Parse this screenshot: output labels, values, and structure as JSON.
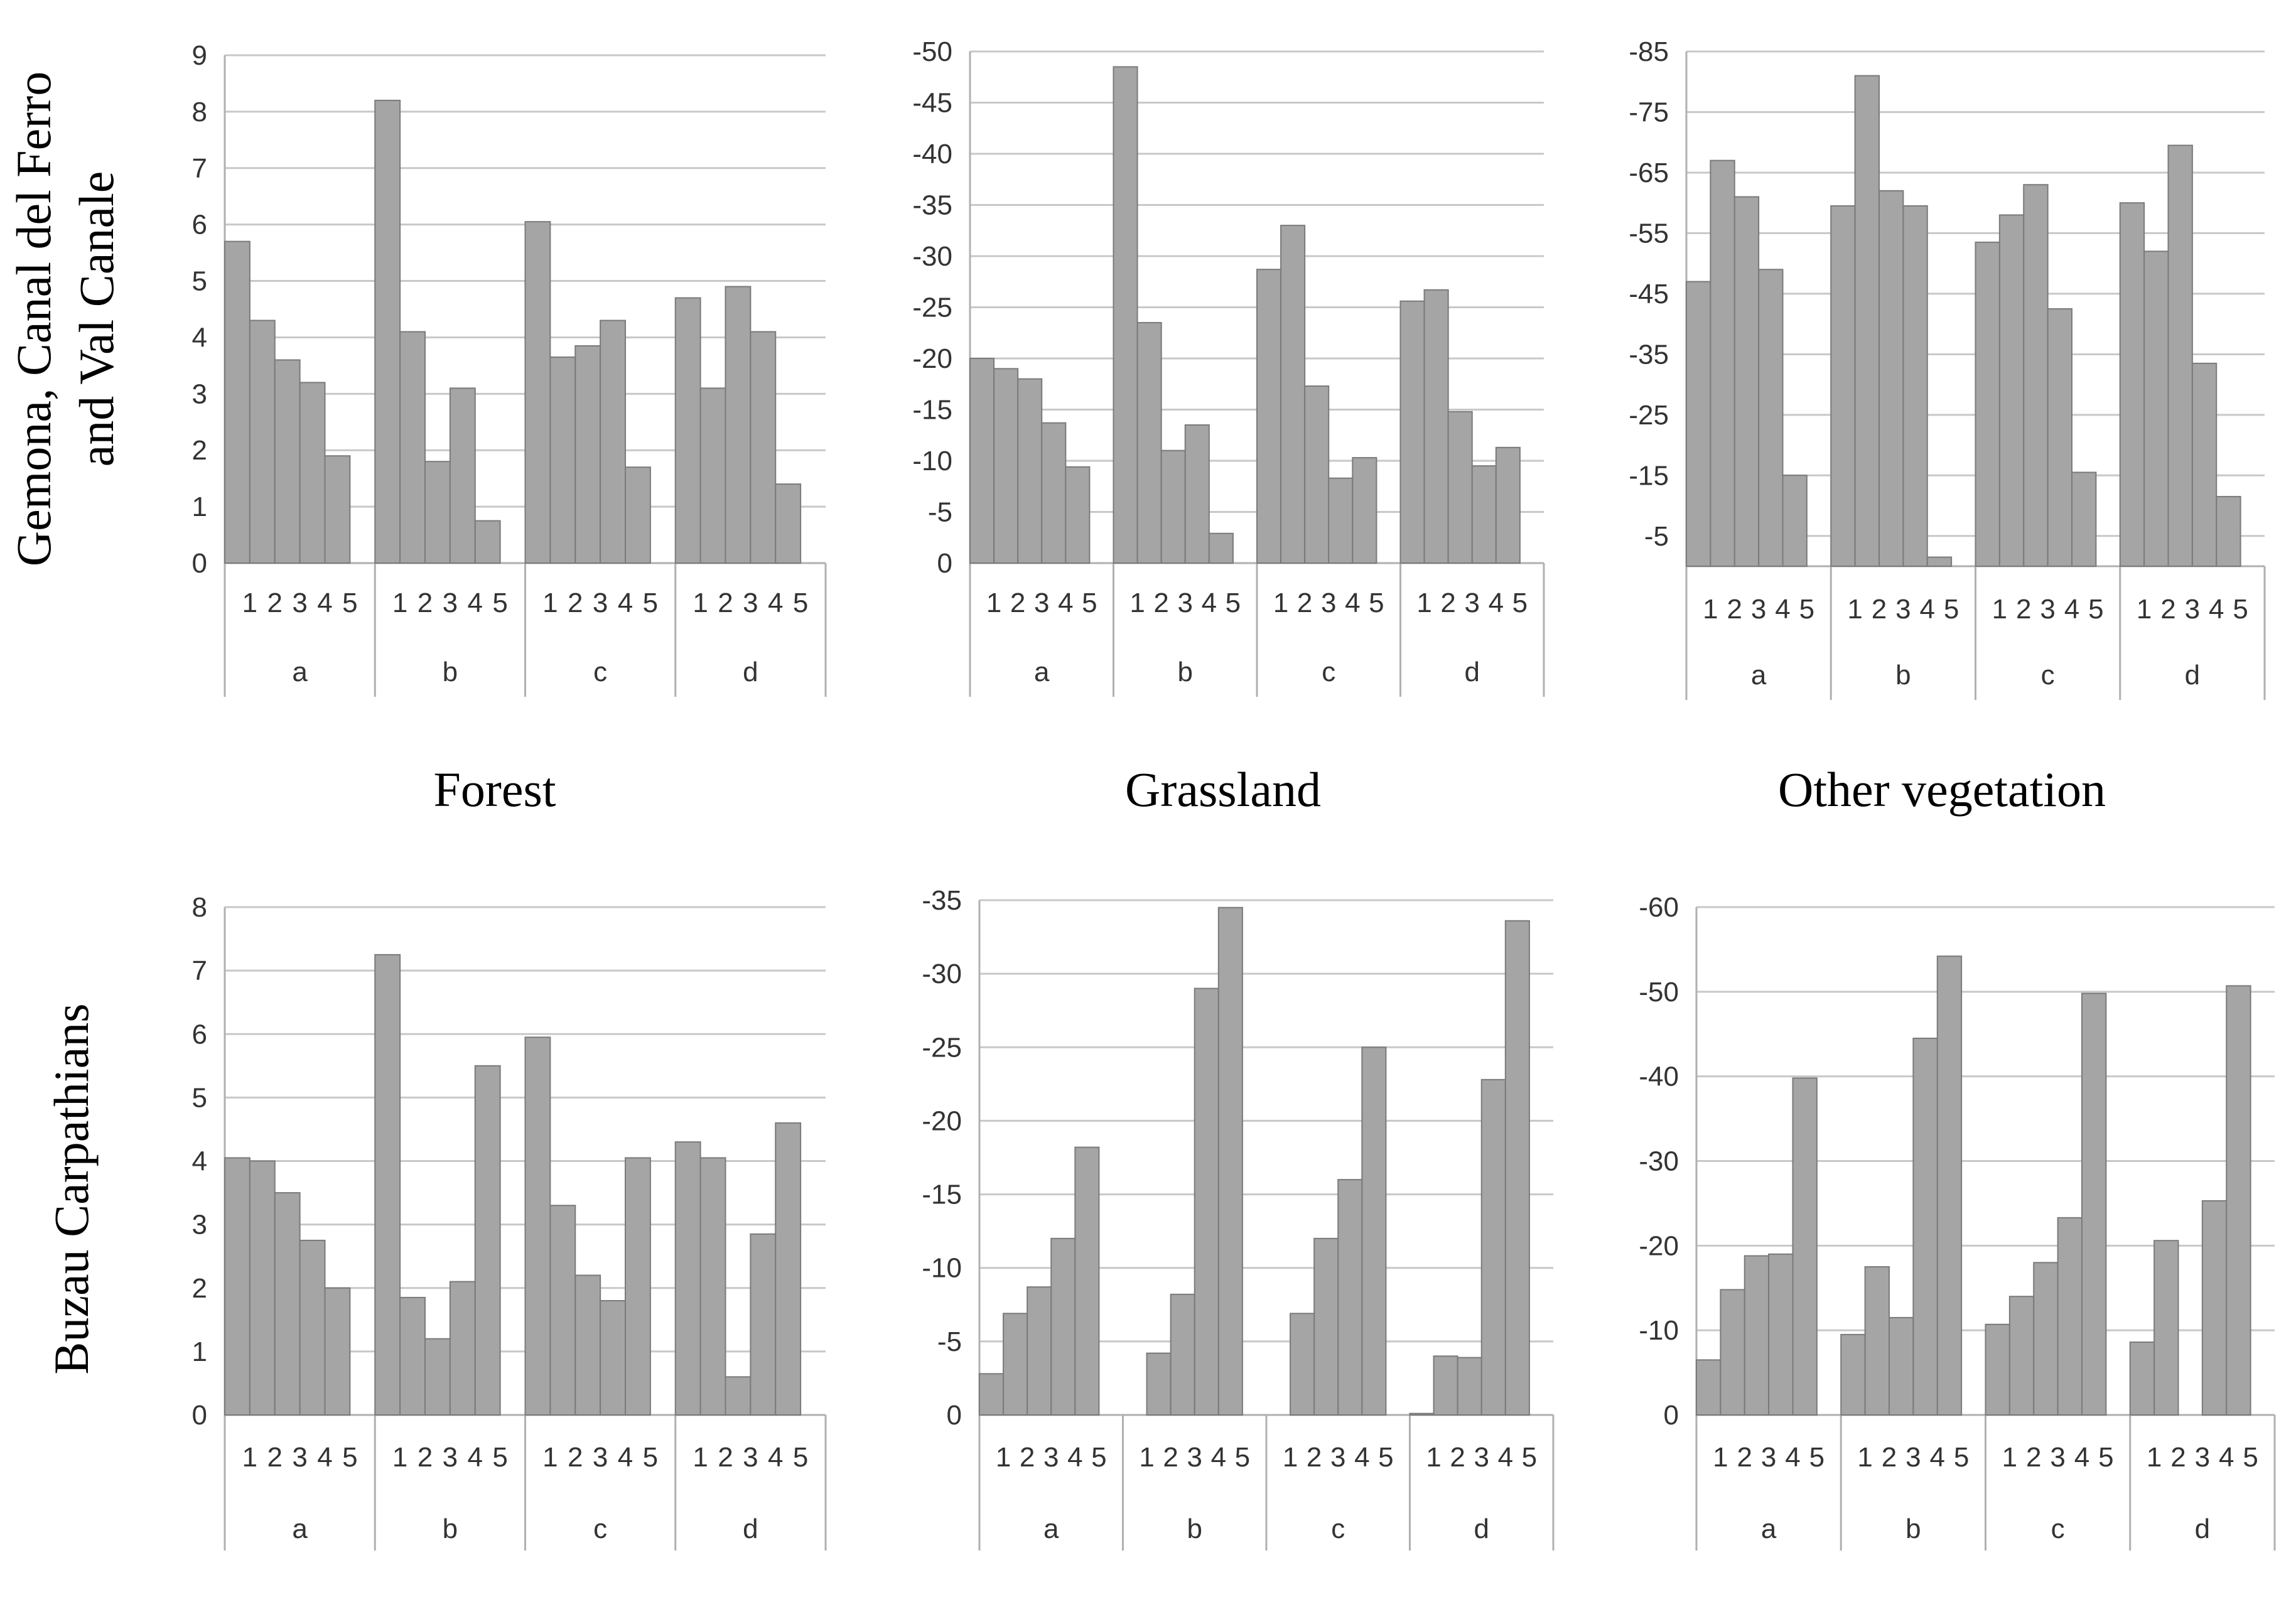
{
  "column_titles": [
    "Forest",
    "Grassland",
    "Other vegetation"
  ],
  "row_labels": [
    "Gemona, Canal del Ferro",
    "and Val Canale",
    "Buzau Carpathians"
  ],
  "colors": {
    "bar": "#a5a5a5",
    "bar_edge": "#7a7a7a",
    "grid": "#c8c8c8"
  },
  "chart_data": [
    {
      "type": "bar",
      "panel": "top-left",
      "row": "Gemona, Canal del Ferro and Val Canale",
      "column": "Forest",
      "groups": [
        "a",
        "b",
        "c",
        "d"
      ],
      "subcategories": [
        "1",
        "2",
        "3",
        "4",
        "5"
      ],
      "values": [
        [
          5.7,
          4.3,
          3.6,
          3.2,
          1.9
        ],
        [
          8.2,
          4.1,
          1.8,
          3.1,
          0.75
        ],
        [
          6.05,
          3.65,
          3.85,
          4.3,
          1.7
        ],
        [
          4.7,
          3.1,
          4.9,
          4.1,
          1.4
        ]
      ],
      "ylim": [
        0,
        9
      ],
      "ticks": [
        0,
        1,
        2,
        3,
        4,
        5,
        6,
        7,
        8,
        9
      ],
      "tick_labels": [
        "0",
        "1",
        "2",
        "3",
        "4",
        "5",
        "6",
        "7",
        "8",
        "9"
      ]
    },
    {
      "type": "bar",
      "panel": "top-middle",
      "row": "Gemona, Canal del Ferro and Val Canale",
      "column": "Grassland",
      "groups": [
        "a",
        "b",
        "c",
        "d"
      ],
      "subcategories": [
        "1",
        "2",
        "3",
        "4",
        "5"
      ],
      "values": [
        [
          -20,
          -19,
          -18,
          -13.7,
          -9.4
        ],
        [
          -48.5,
          -23.5,
          -11,
          -13.5,
          -2.9
        ],
        [
          -28.7,
          -33,
          -17.3,
          -8.3,
          -10.3
        ],
        [
          -25.6,
          -26.7,
          -14.8,
          -9.5,
          -11.3
        ]
      ],
      "ylim": [
        0,
        -50
      ],
      "ticks": [
        0,
        -5,
        -10,
        -15,
        -20,
        -25,
        -30,
        -35,
        -40,
        -45,
        -50
      ],
      "tick_labels": [
        "0",
        "-5",
        "-10",
        "-15",
        "-20",
        "-25",
        "-30",
        "-35",
        "-40",
        "-45",
        "-50"
      ]
    },
    {
      "type": "bar",
      "panel": "top-right",
      "row": "Gemona, Canal del Ferro and Val Canale",
      "column": "Other vegetation",
      "groups": [
        "a",
        "b",
        "c",
        "d"
      ],
      "subcategories": [
        "1",
        "2",
        "3",
        "4",
        "5"
      ],
      "values": [
        [
          -47,
          -67,
          -61,
          -49,
          -15
        ],
        [
          -59.5,
          -81,
          -62,
          -59.5,
          -1.5
        ],
        [
          -53.5,
          -58,
          -63,
          -42.5,
          -15.5
        ],
        [
          -60,
          -52,
          -69.5,
          -33.5,
          -11.5
        ]
      ],
      "ylim": [
        0,
        -85
      ],
      "ticks": [
        -5,
        -15,
        -25,
        -35,
        -45,
        -55,
        -65,
        -75,
        -85
      ],
      "tick_labels": [
        "-5",
        "-15",
        "-25",
        "-35",
        "-45",
        "-55",
        "-65",
        "-75",
        "-85"
      ]
    },
    {
      "type": "bar",
      "panel": "bottom-left",
      "row": "Buzau Carpathians",
      "column": "Forest",
      "groups": [
        "a",
        "b",
        "c",
        "d"
      ],
      "subcategories": [
        "1",
        "2",
        "3",
        "4",
        "5"
      ],
      "values": [
        [
          4.05,
          4.0,
          3.5,
          2.75,
          2.0
        ],
        [
          7.25,
          1.85,
          1.2,
          2.1,
          5.5
        ],
        [
          5.95,
          3.3,
          2.2,
          1.8,
          4.05
        ],
        [
          4.3,
          4.05,
          0.6,
          2.85,
          4.6
        ]
      ],
      "ylim": [
        0,
        8
      ],
      "ticks": [
        0,
        1,
        2,
        3,
        4,
        5,
        6,
        7,
        8
      ],
      "tick_labels": [
        "0",
        "1",
        "2",
        "3",
        "4",
        "5",
        "6",
        "7",
        "8"
      ]
    },
    {
      "type": "bar",
      "panel": "bottom-middle",
      "row": "Buzau Carpathians",
      "column": "Grassland",
      "groups": [
        "a",
        "b",
        "c",
        "d"
      ],
      "subcategories": [
        "1",
        "2",
        "3",
        "4",
        "5"
      ],
      "values": [
        [
          -2.8,
          -6.9,
          -8.7,
          -12,
          -18.2
        ],
        [
          0,
          -4.2,
          -8.2,
          -29,
          -34.5
        ],
        [
          0,
          -6.9,
          -12,
          -16,
          -25
        ],
        [
          -0.1,
          -4,
          -3.9,
          -22.8,
          -33.6
        ]
      ],
      "ylim": [
        0,
        -35
      ],
      "ticks": [
        0,
        -5,
        -10,
        -15,
        -20,
        -25,
        -30,
        -35
      ],
      "tick_labels": [
        "0",
        "-5",
        "-10",
        "-15",
        "-20",
        "-25",
        "-30",
        "-35"
      ]
    },
    {
      "type": "bar",
      "panel": "bottom-right",
      "row": "Buzau Carpathians",
      "column": "Other vegetation",
      "groups": [
        "a",
        "b",
        "c",
        "d"
      ],
      "subcategories": [
        "1",
        "2",
        "3",
        "4",
        "5"
      ],
      "values": [
        [
          -6.5,
          -14.8,
          -18.8,
          -19,
          -39.8
        ],
        [
          -9.5,
          -17.5,
          -11.5,
          -44.5,
          -54.2
        ],
        [
          -10.7,
          -14,
          -18,
          -23.3,
          -49.8
        ],
        [
          -8.6,
          -20.6,
          0,
          -25.3,
          -50.7
        ]
      ],
      "ylim": [
        0,
        -60
      ],
      "ticks": [
        0,
        -10,
        -20,
        -30,
        -40,
        -50,
        -60
      ],
      "tick_labels": [
        "0",
        "-10",
        "-20",
        "-30",
        "-40",
        "-50",
        "-60"
      ]
    }
  ]
}
